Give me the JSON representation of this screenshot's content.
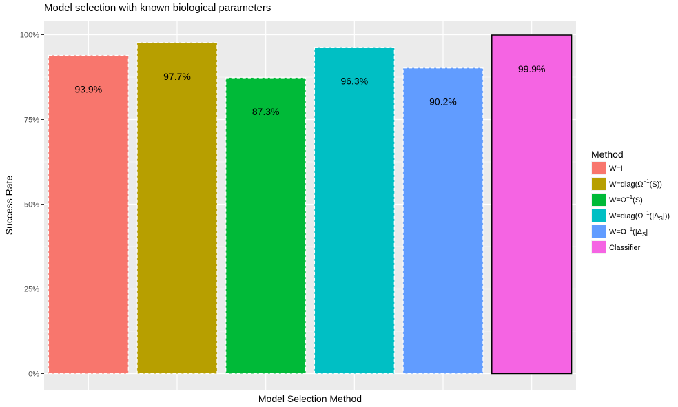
{
  "chart_data": {
    "type": "bar",
    "title": "Model selection with known biological parameters",
    "xlabel": "Model Selection Method",
    "ylabel": "Success Rate",
    "ylim": [
      0,
      100
    ],
    "yticks": [
      0,
      25,
      50,
      75,
      100
    ],
    "ytick_labels": [
      "0%",
      "25%",
      "50%",
      "75%",
      "100%"
    ],
    "grid": true,
    "legend_position": "right",
    "categories": [
      "W=I",
      "W=diag(Ω^-1(S))",
      "W=Ω^-1(S)",
      "W=diag(Ω^-1(|Δ_S|))",
      "W=Ω^-1(|Δ_S|",
      "Classifier"
    ],
    "values": [
      93.9,
      97.7,
      87.3,
      96.3,
      90.2,
      99.9
    ],
    "value_labels": [
      "93.9%",
      "97.7%",
      "87.3%",
      "96.3%",
      "90.2%",
      "99.9%"
    ],
    "colors": [
      "#F8766D",
      "#B79F00",
      "#00BA38",
      "#00BFC4",
      "#619CFF",
      "#F564E3"
    ],
    "outline_styles": [
      "dashed",
      "dashed",
      "dashed",
      "dashed",
      "dashed",
      "solid"
    ],
    "legend": {
      "title": "Method"
    }
  }
}
